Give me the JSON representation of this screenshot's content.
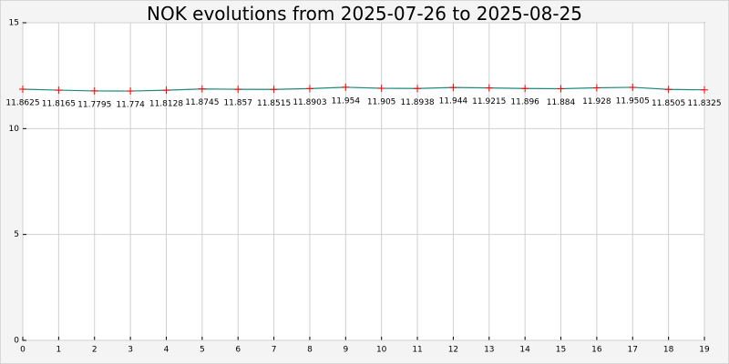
{
  "chart_data": {
    "type": "line",
    "title": "NOK evolutions from 2025-07-26 to 2025-08-25",
    "x": [
      0,
      1,
      2,
      3,
      4,
      5,
      6,
      7,
      8,
      9,
      10,
      11,
      12,
      13,
      14,
      15,
      16,
      17,
      18,
      19
    ],
    "series": [
      {
        "color": "#1f8a7a",
        "marker_color": "#ff0000",
        "values": [
          11.8625,
          11.8165,
          11.7795,
          11.774,
          11.8128,
          11.8745,
          11.857,
          11.8515,
          11.8903,
          11.954,
          11.905,
          11.8938,
          11.944,
          11.9215,
          11.896,
          11.884,
          11.928,
          11.9505,
          11.8505,
          11.8325
        ]
      }
    ],
    "xlim": [
      0,
      19
    ],
    "xticks": [
      0,
      1,
      2,
      3,
      4,
      5,
      6,
      7,
      8,
      9,
      10,
      11,
      12,
      13,
      14,
      15,
      16,
      17,
      18,
      19
    ],
    "ylim": [
      0,
      15
    ],
    "yticks": [
      0,
      5,
      10,
      15
    ],
    "grid": true
  }
}
